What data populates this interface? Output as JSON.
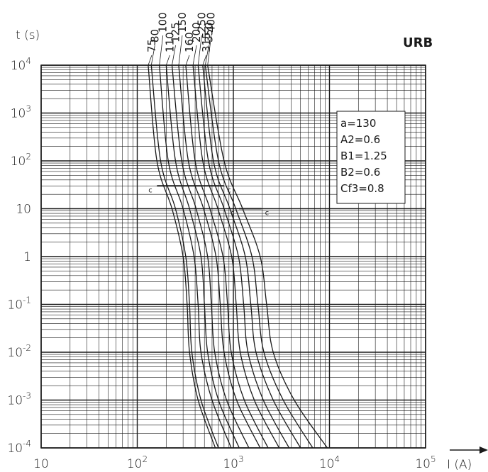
{
  "chart_data": {
    "type": "line",
    "title": "URB",
    "xlabel": "I (A)",
    "ylabel": "t (s)",
    "x_scale": "log",
    "y_scale": "log",
    "xlim": [
      10,
      100000
    ],
    "ylim": [
      0.0001,
      10000
    ],
    "grid": true,
    "x_ticks": [
      {
        "base": "10",
        "exp": ""
      },
      {
        "base": "10",
        "exp": "2"
      },
      {
        "base": "10",
        "exp": "3"
      },
      {
        "base": "10",
        "exp": "4"
      },
      {
        "base": "10",
        "exp": "5"
      }
    ],
    "y_ticks": [
      {
        "base": "10",
        "exp": "4"
      },
      {
        "base": "10",
        "exp": "3"
      },
      {
        "base": "10",
        "exp": "2"
      },
      {
        "base": "10",
        "exp": ""
      },
      {
        "base": "1",
        "exp": ""
      },
      {
        "base": "10",
        "exp": "-1"
      },
      {
        "base": "10",
        "exp": "-2"
      },
      {
        "base": "10",
        "exp": "-3"
      },
      {
        "base": "10",
        "exp": "-4"
      }
    ],
    "parameters": [
      "a=130",
      "A2=0.6",
      "B1=1.25",
      "B2=0.6",
      "Cf3=0.8"
    ],
    "series": [
      {
        "name": "75",
        "points": [
          [
            130,
            10000
          ],
          [
            160,
            100
          ],
          [
            230,
            10
          ],
          [
            300,
            1
          ],
          [
            330,
            0.1
          ],
          [
            350,
            0.01
          ],
          [
            430,
            0.001
          ],
          [
            650,
            0.0001
          ]
        ]
      },
      {
        "name": "80",
        "points": [
          [
            140,
            10000
          ],
          [
            175,
            100
          ],
          [
            250,
            10
          ],
          [
            320,
            1
          ],
          [
            350,
            0.1
          ],
          [
            370,
            0.01
          ],
          [
            460,
            0.001
          ],
          [
            700,
            0.0001
          ]
        ]
      },
      {
        "name": "100",
        "points": [
          [
            170,
            10000
          ],
          [
            210,
            100
          ],
          [
            300,
            10
          ],
          [
            390,
            1
          ],
          [
            430,
            0.1
          ],
          [
            460,
            0.01
          ],
          [
            600,
            0.001
          ],
          [
            950,
            0.0001
          ]
        ]
      },
      {
        "name": "110",
        "points": [
          [
            200,
            10000
          ],
          [
            250,
            100
          ],
          [
            350,
            10
          ],
          [
            460,
            1
          ],
          [
            500,
            0.1
          ],
          [
            540,
            0.01
          ],
          [
            700,
            0.001
          ],
          [
            1150,
            0.0001
          ]
        ]
      },
      {
        "name": "125",
        "points": [
          [
            230,
            10000
          ],
          [
            290,
            100
          ],
          [
            410,
            10
          ],
          [
            540,
            1
          ],
          [
            590,
            0.1
          ],
          [
            640,
            0.01
          ],
          [
            850,
            0.001
          ],
          [
            1450,
            0.0001
          ]
        ]
      },
      {
        "name": "150",
        "points": [
          [
            270,
            10000
          ],
          [
            340,
            100
          ],
          [
            490,
            10
          ],
          [
            660,
            1
          ],
          [
            730,
            0.1
          ],
          [
            800,
            0.01
          ],
          [
            1080,
            0.001
          ],
          [
            1900,
            0.0001
          ]
        ]
      },
      {
        "name": "160",
        "points": [
          [
            320,
            10000
          ],
          [
            400,
            100
          ],
          [
            570,
            10
          ],
          [
            780,
            1
          ],
          [
            870,
            0.1
          ],
          [
            950,
            0.01
          ],
          [
            1300,
            0.001
          ],
          [
            2300,
            0.0001
          ]
        ]
      },
      {
        "name": "200",
        "points": [
          [
            380,
            10000
          ],
          [
            480,
            100
          ],
          [
            690,
            10
          ],
          [
            960,
            1
          ],
          [
            1070,
            0.1
          ],
          [
            1180,
            0.01
          ],
          [
            1650,
            0.001
          ],
          [
            3000,
            0.0001
          ]
        ]
      },
      {
        "name": "250",
        "points": [
          [
            430,
            10000
          ],
          [
            550,
            100
          ],
          [
            800,
            10
          ],
          [
            1130,
            1
          ],
          [
            1280,
            0.1
          ],
          [
            1420,
            0.01
          ],
          [
            2050,
            0.001
          ],
          [
            3800,
            0.0001
          ]
        ]
      },
      {
        "name": "315",
        "points": [
          [
            480,
            10000
          ],
          [
            620,
            100
          ],
          [
            920,
            10
          ],
          [
            1330,
            1
          ],
          [
            1520,
            0.1
          ],
          [
            1720,
            0.01
          ],
          [
            2600,
            0.001
          ],
          [
            5000,
            0.0001
          ]
        ]
      },
      {
        "name": "350",
        "points": [
          [
            510,
            10000
          ],
          [
            700,
            100
          ],
          [
            1060,
            10
          ],
          [
            1560,
            1
          ],
          [
            1800,
            0.1
          ],
          [
            2080,
            0.01
          ],
          [
            3300,
            0.001
          ],
          [
            6700,
            0.0001
          ]
        ]
      },
      {
        "name": "400",
        "points": [
          [
            540,
            10000
          ],
          [
            800,
            100
          ],
          [
            1250,
            10
          ],
          [
            1900,
            1
          ],
          [
            2220,
            0.1
          ],
          [
            2600,
            0.01
          ],
          [
            4300,
            0.001
          ],
          [
            9500,
            0.0001
          ]
        ]
      }
    ],
    "annotations": [
      {
        "label": "c",
        "x1": 140,
        "x2": 850,
        "y": 30
      },
      {
        "label": "c",
        "x1": 1000,
        "x2": 2100,
        "y": 10
      }
    ]
  }
}
